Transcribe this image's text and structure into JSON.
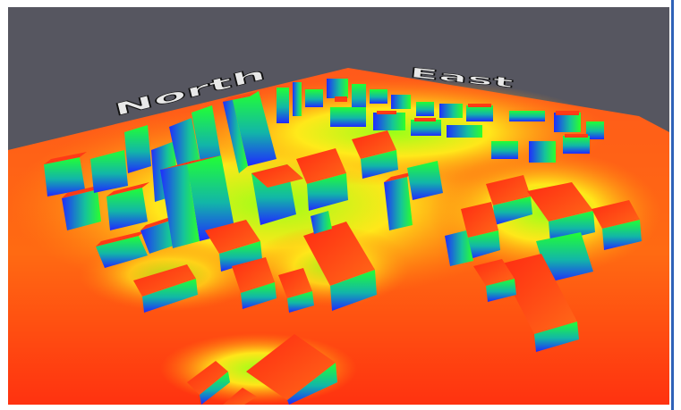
{
  "scene": {
    "colors": {
      "sky": "#565660",
      "ground_far": "#ffea2b",
      "ground_near": "#ff2a08",
      "heat_mid": "#ffe600",
      "heat_low": "#21ff2e",
      "shadow_blue": "#1d24ff",
      "roof_top": "#ff3a16",
      "frame_border": "#2f62b8"
    },
    "compass": {
      "north": "North",
      "east": "East"
    }
  }
}
